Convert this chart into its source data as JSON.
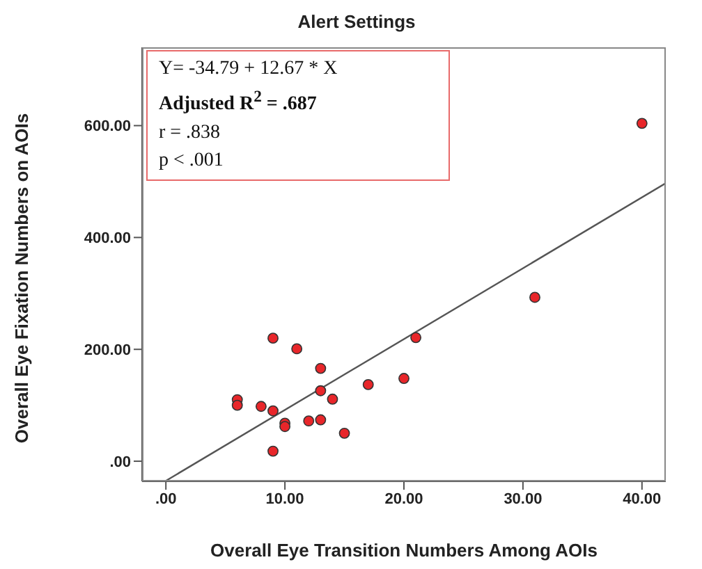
{
  "chart_data": {
    "type": "scatter",
    "title": "Alert Settings",
    "xlabel": "Overall Eye Transition Numbers Among AOIs",
    "ylabel": "Overall Eye Fixation Numbers on AOIs",
    "series": [
      {
        "color": "#e8262a",
        "marker": "circle",
        "x": [
          9,
          11,
          13,
          21,
          20,
          17,
          13,
          14,
          6,
          6,
          8,
          9,
          10,
          10,
          12,
          13,
          15,
          9,
          31,
          40
        ],
        "values": [
          220,
          201,
          166,
          221,
          148,
          137,
          126,
          111,
          110,
          100,
          98,
          90,
          68,
          62,
          72,
          74,
          50,
          18,
          293,
          604
        ]
      },
      {
        "type": "line",
        "color": "#555555",
        "x": [
          0,
          42
        ],
        "values": [
          -35,
          497
        ]
      }
    ],
    "xlim": [
      -2,
      42
    ],
    "ylim": [
      -36,
      740
    ],
    "xticks": [
      {
        "value": 0,
        "label": ".00"
      },
      {
        "value": 10,
        "label": "10.00"
      },
      {
        "value": 20,
        "label": "20.00"
      },
      {
        "value": 30,
        "label": "30.00"
      },
      {
        "value": 40,
        "label": "40.00"
      }
    ],
    "yticks": [
      {
        "value": 0,
        "label": ".00"
      },
      {
        "value": 200,
        "label": "200.00"
      },
      {
        "value": 400,
        "label": "400.00"
      },
      {
        "value": 600,
        "label": "600.00"
      }
    ],
    "annotations": [
      "Y= -34.79 + 12.67 * X",
      "Adjusted R$^{2}$ = .687",
      "r = .838",
      "p < .001"
    ],
    "grid": false,
    "line_style": "solid"
  }
}
